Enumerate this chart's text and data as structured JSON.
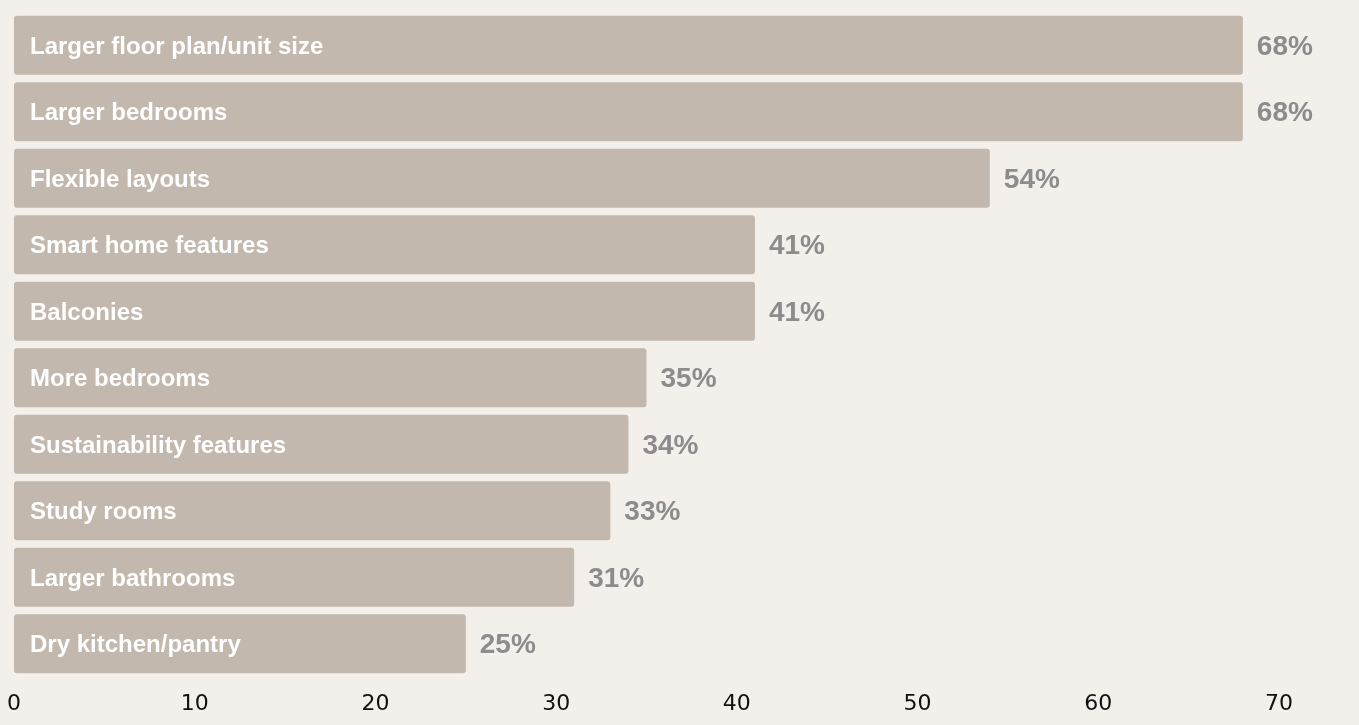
{
  "chart_data": {
    "type": "bar",
    "orientation": "horizontal",
    "categories": [
      "Larger floor plan/unit size",
      "Larger bedrooms",
      "Flexible layouts",
      "Smart home features",
      "Balconies",
      "More bedrooms",
      "Sustainability features",
      "Study rooms",
      "Larger bathrooms",
      "Dry kitchen/pantry"
    ],
    "values": [
      68,
      68,
      54,
      41,
      41,
      35,
      34,
      33,
      31,
      25
    ],
    "value_labels": [
      "68%",
      "68%",
      "54%",
      "41%",
      "41%",
      "35%",
      "34%",
      "33%",
      "31%",
      "25%"
    ],
    "color": "#c2b8ae",
    "xlim": [
      0,
      70
    ],
    "xticks": [
      0,
      10,
      20,
      30,
      40,
      50,
      60,
      70
    ],
    "grid": false
  }
}
